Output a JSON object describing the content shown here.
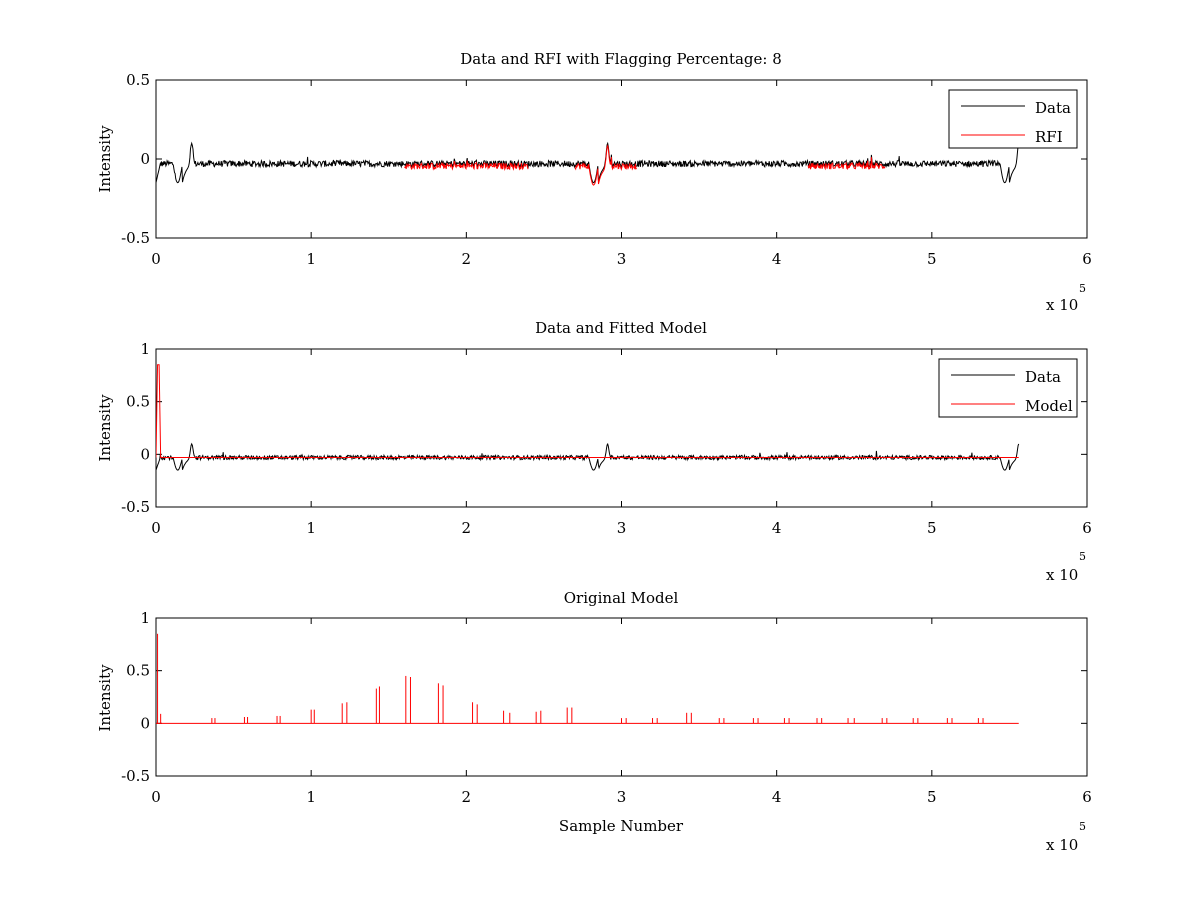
{
  "figure": {
    "background": "#ffffff",
    "data_color": "#000000",
    "rfi_color": "#ff0000"
  },
  "chart_data": [
    {
      "type": "line",
      "title": "Data and RFI with Flagging Percentage: 8",
      "xlabel": "",
      "ylabel": "Intensity",
      "xlim": [
        0,
        600000
      ],
      "ylim": [
        -0.5,
        0.5
      ],
      "xticks": [
        "0",
        "1",
        "2",
        "3",
        "4",
        "5",
        "6"
      ],
      "yticks": [
        "0.5",
        "0",
        "-0.5"
      ],
      "x_exponent_base": "x 10",
      "x_exponent_power": "5",
      "legend": {
        "position": "top-right",
        "entries": [
          "Data",
          "RFI"
        ]
      },
      "series": [
        {
          "name": "Data",
          "color": "#000000",
          "approx_level": -0.03,
          "dips_at": [
            17000,
            285000,
            550000
          ]
        },
        {
          "name": "RFI",
          "color": "#ff0000",
          "flagged_ranges": [
            [
              160000,
              240000
            ],
            [
              270000,
              310000
            ],
            [
              420000,
              470000
            ]
          ]
        }
      ]
    },
    {
      "type": "line",
      "title": "Data and Fitted Model",
      "xlabel": "",
      "ylabel": "Intensity",
      "xlim": [
        0,
        600000
      ],
      "ylim": [
        -0.5,
        1
      ],
      "xticks": [
        "0",
        "1",
        "2",
        "3",
        "4",
        "5",
        "6"
      ],
      "yticks": [
        "1",
        "0.5",
        "0",
        "-0.5"
      ],
      "x_exponent_base": "x 10",
      "x_exponent_power": "5",
      "legend": {
        "position": "top-right",
        "entries": [
          "Data",
          "Model"
        ]
      },
      "series": [
        {
          "name": "Data",
          "color": "#000000",
          "approx_level": -0.03
        },
        {
          "name": "Model",
          "color": "#ff0000",
          "approx_level": -0.03,
          "initial_peak": 0.85
        }
      ]
    },
    {
      "type": "line",
      "title": "Original Model",
      "xlabel": "Sample Number",
      "ylabel": "Intensity",
      "xlim": [
        0,
        600000
      ],
      "ylim": [
        -0.5,
        1
      ],
      "xticks": [
        "0",
        "1",
        "2",
        "3",
        "4",
        "5",
        "6"
      ],
      "yticks": [
        "1",
        "0.5",
        "0",
        "-0.5"
      ],
      "x_exponent_base": "x 10",
      "x_exponent_power": "5",
      "series": [
        {
          "name": "Original Model",
          "color": "#ff0000",
          "spikes": [
            [
              1000,
              0.85
            ],
            [
              3000,
              0.09
            ],
            [
              36000,
              0.05
            ],
            [
              38000,
              0.05
            ],
            [
              57000,
              0.06
            ],
            [
              59000,
              0.06
            ],
            [
              78000,
              0.07
            ],
            [
              80000,
              0.07
            ],
            [
              100000,
              0.13
            ],
            [
              102000,
              0.13
            ],
            [
              120000,
              0.19
            ],
            [
              123000,
              0.2
            ],
            [
              142000,
              0.33
            ],
            [
              144000,
              0.35
            ],
            [
              161000,
              0.45
            ],
            [
              164000,
              0.44
            ],
            [
              182000,
              0.38
            ],
            [
              185000,
              0.36
            ],
            [
              204000,
              0.2
            ],
            [
              207000,
              0.18
            ],
            [
              224000,
              0.12
            ],
            [
              228000,
              0.1
            ],
            [
              245000,
              0.11
            ],
            [
              248000,
              0.12
            ],
            [
              265000,
              0.15
            ],
            [
              268000,
              0.15
            ],
            [
              300000,
              0.05
            ],
            [
              303000,
              0.05
            ],
            [
              320000,
              0.05
            ],
            [
              323000,
              0.05
            ],
            [
              342000,
              0.1
            ],
            [
              345000,
              0.1
            ],
            [
              363000,
              0.05
            ],
            [
              366000,
              0.05
            ],
            [
              385000,
              0.05
            ],
            [
              388000,
              0.05
            ],
            [
              405000,
              0.05
            ],
            [
              408000,
              0.05
            ],
            [
              426000,
              0.05
            ],
            [
              429000,
              0.05
            ],
            [
              446000,
              0.05
            ],
            [
              450000,
              0.05
            ],
            [
              468000,
              0.05
            ],
            [
              471000,
              0.05
            ],
            [
              488000,
              0.05
            ],
            [
              491000,
              0.05
            ],
            [
              510000,
              0.05
            ],
            [
              513000,
              0.05
            ],
            [
              530000,
              0.05
            ],
            [
              533000,
              0.05
            ]
          ]
        }
      ]
    }
  ]
}
